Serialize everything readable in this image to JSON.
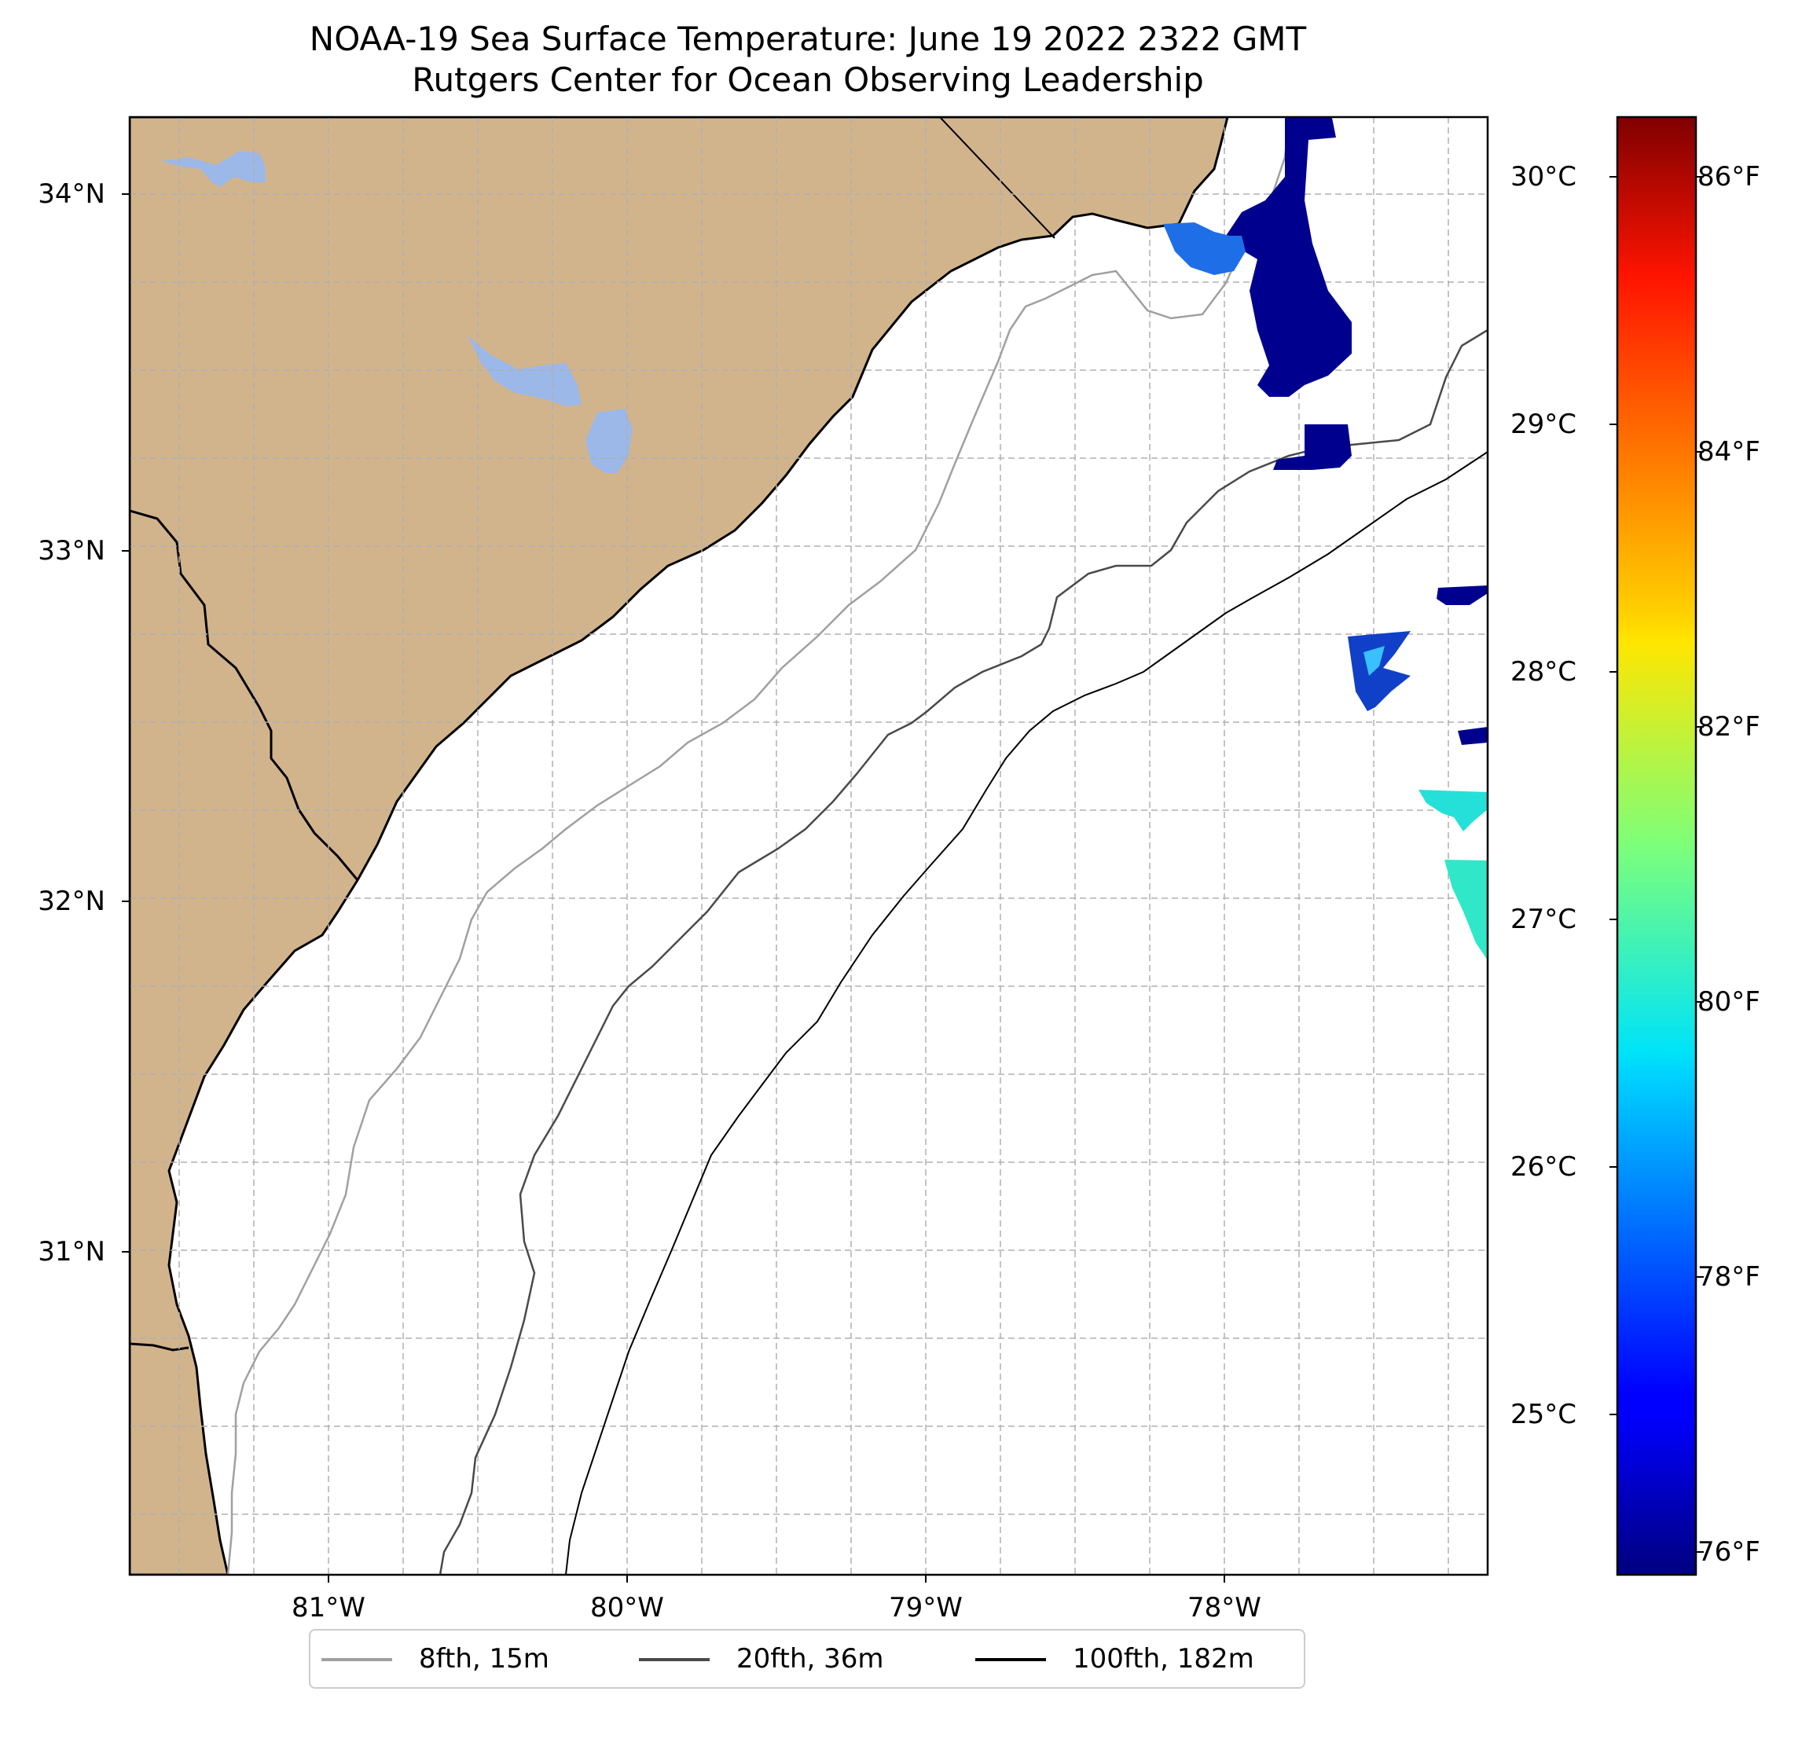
{
  "title": "NOAA-19 Sea Surface Temperature: June 19 2022 2322 GMT",
  "subtitle": "Rutgers Center for Ocean Observing Leadership",
  "colors": {
    "land": "#d2b48c",
    "lake": "#9bb8e8",
    "coastline": "#000000",
    "isobath_8fth": "#a0a0a0",
    "isobath_20fth": "#4a4a4a",
    "isobath_100fth": "#000000",
    "grid": "#b0b0b0",
    "colormap": "jet"
  },
  "map": {
    "lon_range": [
      -81.66,
      -77.24
    ],
    "lat_range": [
      30.13,
      34.22
    ],
    "lat_ticks": [
      "34°N",
      "33°N",
      "32°N",
      "31°N"
    ],
    "lon_ticks": [
      "81°W",
      "80°W",
      "79°W",
      "78°W"
    ],
    "gridlines": "dashed"
  },
  "colorbar": {
    "range_c": [
      24.3,
      30.2
    ],
    "celsius_ticks": [
      "30°C",
      "29°C",
      "28°C",
      "27°C",
      "26°C",
      "25°C"
    ],
    "fahrenheit_ticks": [
      "86°F",
      "84°F",
      "82°F",
      "80°F",
      "78°F",
      "76°F"
    ]
  },
  "legend": {
    "position": "bottom-center",
    "items": [
      {
        "label": "8fth, 15m",
        "color": "#a0a0a0"
      },
      {
        "label": "20fth, 36m",
        "color": "#4a4a4a"
      },
      {
        "label": "100fth, 182m",
        "color": "#000000"
      }
    ]
  }
}
